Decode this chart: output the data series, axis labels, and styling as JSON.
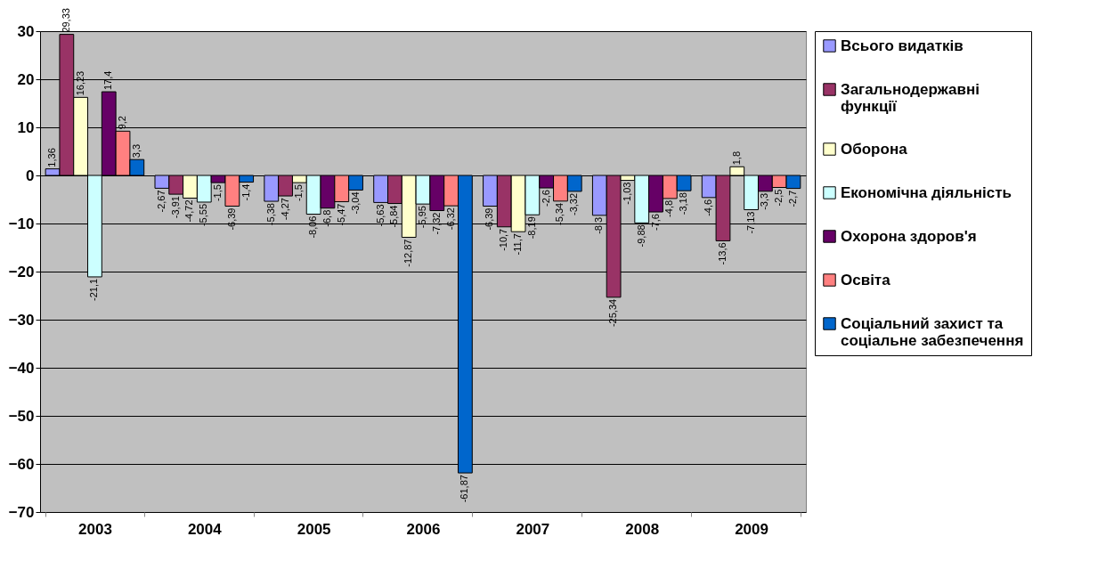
{
  "chart_data": {
    "type": "bar",
    "categories": [
      "2003",
      "2004",
      "2005",
      "2006",
      "2007",
      "2008",
      "2009"
    ],
    "series": [
      {
        "name": "Всього видатків",
        "color": "#9999ff",
        "values": [
          1.36,
          -2.67,
          -5.38,
          -5.63,
          -6.39,
          -8.3,
          -4.6
        ],
        "value_labels": [
          "1,36",
          "-2,67",
          "-5,38",
          "-5,63",
          "-6,39",
          "-8,3",
          "-4,6"
        ]
      },
      {
        "name": "Загальнодержавні функції",
        "color": "#993366",
        "values": [
          29.33,
          -3.91,
          -4.27,
          -5.84,
          -10.7,
          -25.34,
          -13.6
        ],
        "value_labels": [
          "29,33",
          "-3,91",
          "-4,27",
          "-5,84",
          "-10,7",
          "-25,34",
          "-13,6"
        ]
      },
      {
        "name": "Оборона",
        "color": "#ffffcc",
        "values": [
          16.23,
          -4.72,
          -1.5,
          -12.87,
          -11.7,
          -1.03,
          1.8
        ],
        "value_labels": [
          "16,23",
          "-4,72",
          "-1,5",
          "-12,87",
          "-11,7",
          "-1,03",
          "1,8"
        ]
      },
      {
        "name": "Економічна діяльність",
        "color": "#ccffff",
        "values": [
          -21.1,
          -5.55,
          -8.06,
          -5.95,
          -8.19,
          -9.88,
          -7.13
        ],
        "value_labels": [
          "-21,1",
          "-5,55",
          "-8,06",
          "-5,95",
          "-8,19",
          "-9,88",
          "-7,13"
        ]
      },
      {
        "name": "Охорона здоров'я",
        "color": "#660066",
        "values": [
          17.4,
          -1.5,
          -6.8,
          -7.32,
          -2.6,
          -7.6,
          -3.3
        ],
        "value_labels": [
          "17,4",
          "-1,5",
          "-6,8",
          "-7,32",
          "-2,6",
          "-7,6",
          "-3,3"
        ]
      },
      {
        "name": "Освіта",
        "color": "#ff8080",
        "values": [
          9.2,
          -6.39,
          -5.47,
          -6.32,
          -5.34,
          -4.8,
          -2.5
        ],
        "value_labels": [
          "9,2",
          "-6,39",
          "-5,47",
          "-6,32",
          "-5,34",
          "-4,8",
          "-2,5"
        ]
      },
      {
        "name": "Соціальний захист та соціальне забезпечення",
        "color": "#0066cc",
        "values": [
          3.3,
          -1.4,
          -3.04,
          -61.87,
          -3.32,
          -3.18,
          -2.7
        ],
        "value_labels": [
          "3,3",
          "-1,4",
          "-3,04",
          "-61,87",
          "-3,32",
          "-3,18",
          "-2,7"
        ]
      }
    ],
    "ylim": [
      -70,
      30
    ],
    "yticks": [
      -70,
      -60,
      -50,
      -40,
      -30,
      -20,
      -10,
      0,
      10,
      20,
      30
    ],
    "grid": "y",
    "legend": "right"
  }
}
